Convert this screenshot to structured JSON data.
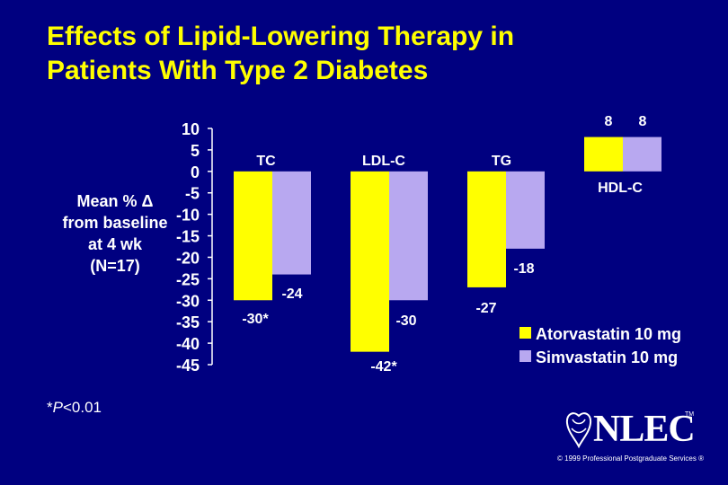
{
  "title_lines": [
    "Effects of Lipid-Lowering Therapy in",
    "Patients With Type 2 Diabetes"
  ],
  "ylabel_lines": [
    "Mean % Δ",
    "from baseline",
    "at 4 wk",
    "(N=17)"
  ],
  "footnote": {
    "prefix": "*",
    "p": "P",
    "suffix": "<0.01"
  },
  "logo": {
    "text": "NLEC",
    "tm": "TM"
  },
  "copyright": "© 1999 Professional Postgraduate Services ®",
  "colors": {
    "background": "#000080",
    "title": "#ffff00",
    "atorvastatin": "#ffff00",
    "simvastatin": "#b8a8f0",
    "text": "#ffffff"
  },
  "chart_data": {
    "type": "bar",
    "categories": [
      "TC",
      "LDL-C",
      "TG",
      "HDL-C"
    ],
    "series": [
      {
        "name": "Atorvastatin 10 mg",
        "values": [
          -30,
          -42,
          -27,
          8
        ],
        "labels": [
          "-30*",
          "-42*",
          "-27",
          "8"
        ]
      },
      {
        "name": "Simvastatin 10 mg",
        "values": [
          -24,
          -30,
          -18,
          8
        ],
        "labels": [
          "-24",
          "-30",
          "-18",
          "8"
        ]
      }
    ],
    "yticks": [
      10,
      5,
      0,
      -5,
      -10,
      -15,
      -20,
      -25,
      -30,
      -35,
      -40,
      -45
    ],
    "ylim": [
      -45,
      10
    ],
    "ylabel": "Mean % Δ from baseline at 4 wk (N=17)",
    "legend_position": "bottom-right"
  }
}
